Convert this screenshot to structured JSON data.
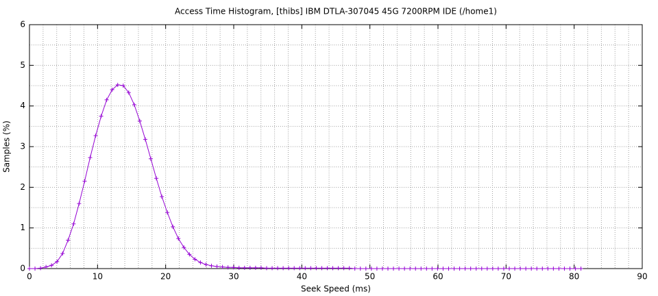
{
  "chart_data": {
    "type": "line",
    "title": "Access Time Histogram, [thibs] IBM DTLA-307045 45G 7200RPM IDE (/home1)",
    "x_label": "Seek Speed (ms)",
    "y_label": "Samples (%)",
    "xlim": [
      0,
      90
    ],
    "xticks": [
      0,
      10,
      20,
      30,
      40,
      50,
      60,
      70,
      80,
      90
    ],
    "ylim": [
      0,
      6
    ],
    "yticks": [
      0,
      1,
      2,
      3,
      4,
      5,
      6
    ],
    "grid": true,
    "mxtics": 5,
    "mytics": 2,
    "x": [
      0,
      0.81,
      1.62,
      2.43,
      3.24,
      4.05,
      4.86,
      5.67,
      6.48,
      7.29,
      8.1,
      8.91,
      9.72,
      10.53,
      11.34,
      12.15,
      12.96,
      13.77,
      14.58,
      15.39,
      16.2,
      17.01,
      17.82,
      18.63,
      19.44,
      20.25,
      21.06,
      21.87,
      22.68,
      23.49,
      24.3,
      25.11,
      25.92,
      26.73,
      27.54,
      28.35,
      29.16,
      29.97,
      30.78,
      31.59,
      32.4,
      33.21,
      34.02,
      34.83,
      35.64,
      36.45,
      37.26,
      38.07,
      38.88,
      39.69,
      40.5,
      41.31,
      42.12,
      42.93,
      43.74,
      44.55,
      45.36,
      46.17,
      46.98,
      47.79,
      48.6,
      49.41,
      50.22,
      51.03,
      51.84,
      52.65,
      53.46,
      54.27,
      55.08,
      55.89,
      56.7,
      57.51,
      58.32,
      59.13,
      59.94,
      60.75,
      61.56,
      62.37,
      63.18,
      63.99,
      64.8,
      65.61,
      66.42,
      67.23,
      68.04,
      68.85,
      69.66,
      70.47,
      71.28,
      72.09,
      72.9,
      73.71,
      74.52,
      75.33,
      76.14,
      76.95,
      77.76,
      78.57,
      79.38,
      80.19,
      81
    ],
    "series": [
      {
        "color": "#9400d3",
        "values": [
          0,
          0,
          0.01,
          0.04,
          0.08,
          0.17,
          0.37,
          0.7,
          1.1,
          1.6,
          2.15,
          2.73,
          3.27,
          3.75,
          4.15,
          4.4,
          4.52,
          4.5,
          4.33,
          4.03,
          3.63,
          3.18,
          2.7,
          2.22,
          1.77,
          1.38,
          1.03,
          0.74,
          0.52,
          0.35,
          0.23,
          0.15,
          0.1,
          0.07,
          0.05,
          0.04,
          0.03,
          0.03,
          0.02,
          0.02,
          0.02,
          0.02,
          0.02,
          0.01,
          0.01,
          0.01,
          0.01,
          0.01,
          0.01,
          0.01,
          0.01,
          0.01,
          0.01,
          0.01,
          0.01,
          0.01,
          0.01,
          0.01,
          0.01,
          0,
          0,
          0,
          0,
          0,
          0,
          0,
          0,
          0,
          0,
          0,
          0,
          0,
          0,
          0,
          0,
          0,
          0,
          0,
          0,
          0,
          0,
          0,
          0,
          0,
          0,
          0,
          0,
          0,
          0,
          0,
          0,
          0,
          0,
          0,
          0,
          0,
          0,
          0,
          0,
          0,
          0
        ]
      }
    ]
  }
}
